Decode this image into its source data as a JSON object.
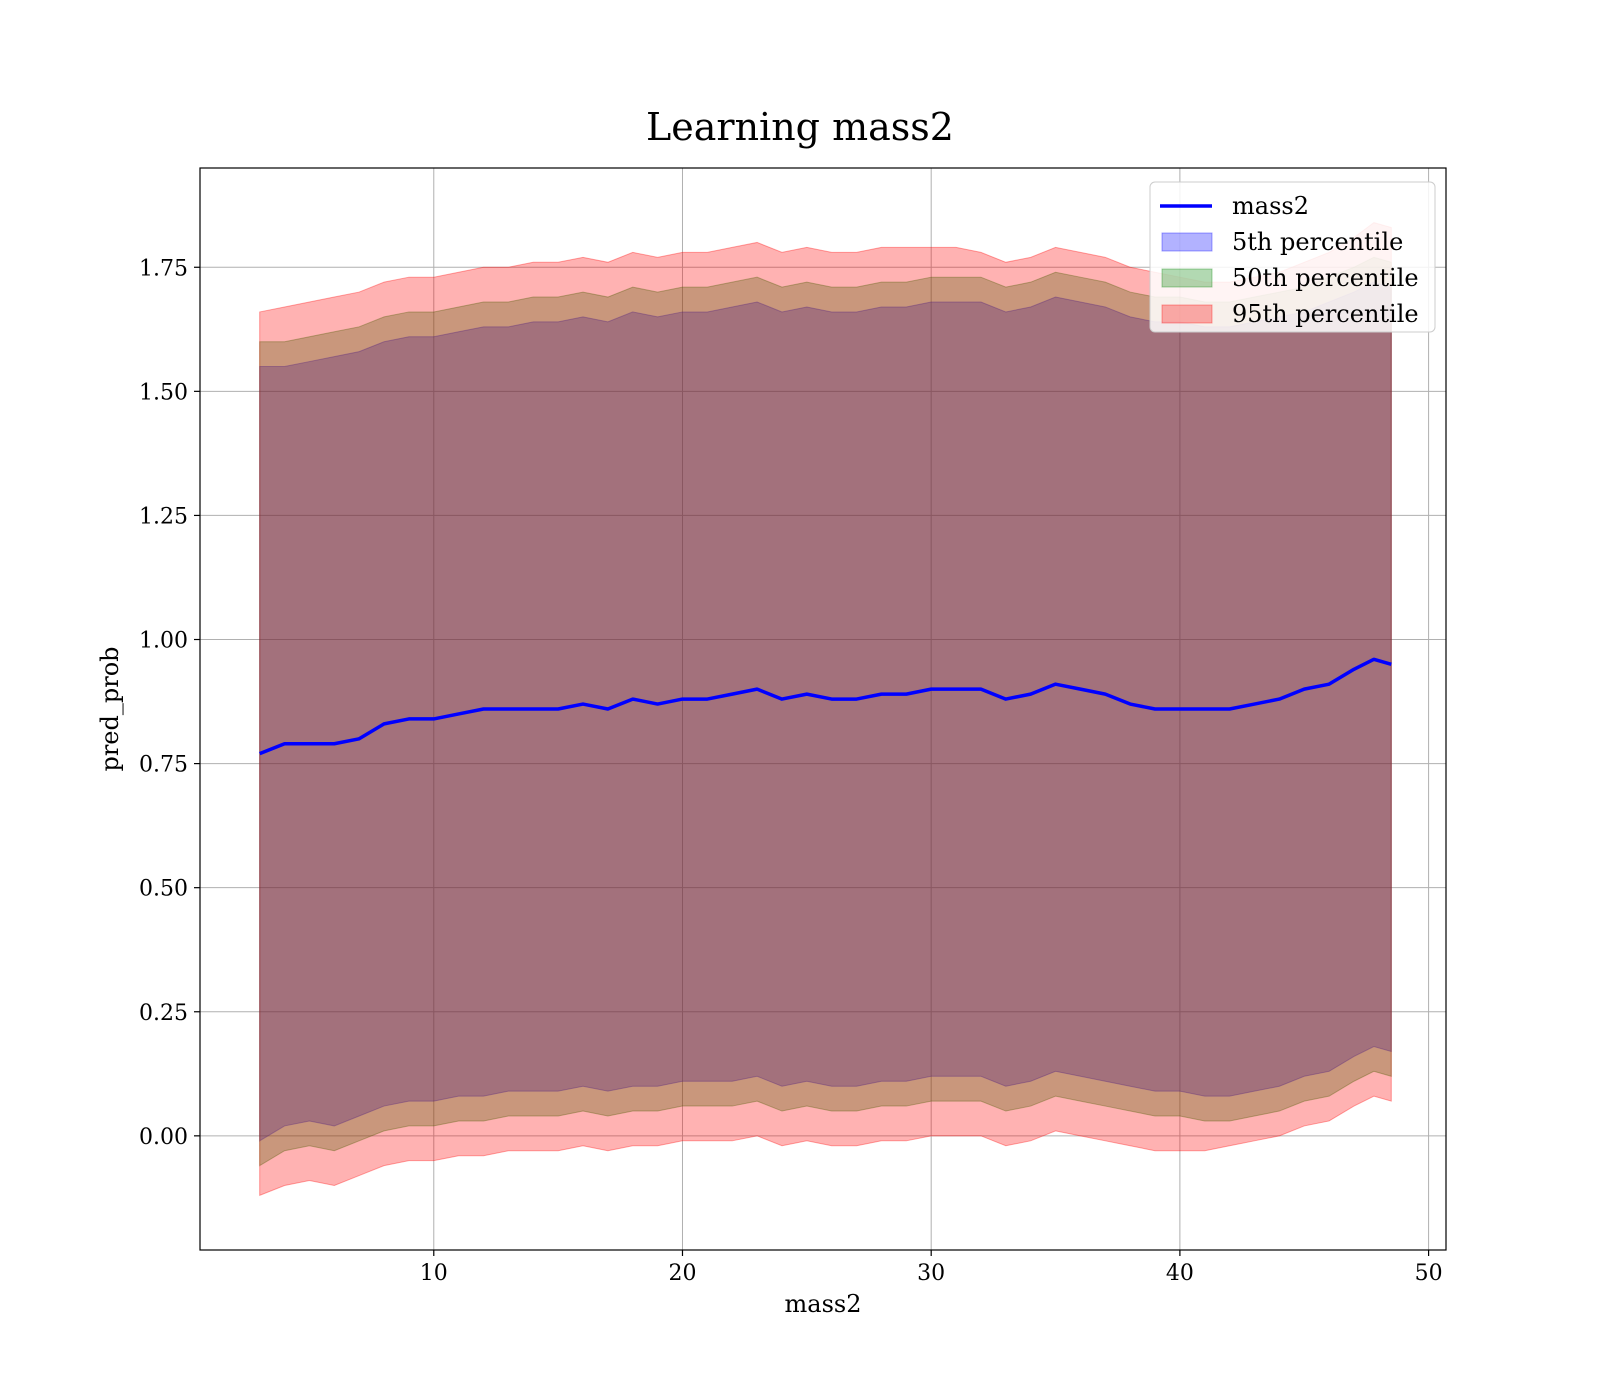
{
  "chart_data": {
    "type": "area",
    "title": "Learning mass2",
    "xlabel": "mass2",
    "ylabel": "pred_prob",
    "xlim": [
      0.6,
      50.7
    ],
    "ylim": [
      -0.23,
      1.95
    ],
    "xticks": [
      10,
      20,
      30,
      40,
      50
    ],
    "xtick_labels": [
      "10",
      "20",
      "30",
      "40",
      "50"
    ],
    "yticks": [
      0.0,
      0.25,
      0.5,
      0.75,
      1.0,
      1.25,
      1.5,
      1.75
    ],
    "ytick_labels": [
      "0.00",
      "0.25",
      "0.50",
      "0.75",
      "1.00",
      "1.25",
      "1.50",
      "1.75"
    ],
    "grid": true,
    "legend_position": "top-right",
    "series": [
      {
        "name": "mass2",
        "kind": "line",
        "color": "#0000ff",
        "x": [
          3.0,
          4.0,
          5.0,
          6.0,
          7.0,
          8.0,
          9.0,
          10.0,
          11.0,
          12.0,
          13.0,
          14.0,
          15.0,
          16.0,
          17.0,
          18.0,
          19.0,
          20.0,
          21.0,
          22.0,
          23.0,
          24.0,
          25.0,
          26.0,
          27.0,
          28.0,
          29.0,
          30.0,
          31.0,
          32.0,
          33.0,
          34.0,
          35.0,
          36.0,
          37.0,
          38.0,
          39.0,
          40.0,
          41.0,
          42.0,
          43.0,
          44.0,
          45.0,
          46.0,
          47.0,
          47.8,
          48.5
        ],
        "y": [
          0.77,
          0.79,
          0.79,
          0.79,
          0.8,
          0.83,
          0.84,
          0.84,
          0.85,
          0.86,
          0.86,
          0.86,
          0.86,
          0.87,
          0.86,
          0.88,
          0.87,
          0.88,
          0.88,
          0.89,
          0.9,
          0.88,
          0.89,
          0.88,
          0.88,
          0.89,
          0.89,
          0.9,
          0.9,
          0.9,
          0.88,
          0.89,
          0.91,
          0.9,
          0.89,
          0.87,
          0.86,
          0.86,
          0.86,
          0.86,
          0.87,
          0.88,
          0.9,
          0.91,
          0.94,
          0.96,
          0.95
        ]
      },
      {
        "name": "5th percentile",
        "kind": "band",
        "color": "#0000ff",
        "x": [
          3.0,
          4.0,
          5.0,
          6.0,
          7.0,
          8.0,
          9.0,
          10.0,
          11.0,
          12.0,
          13.0,
          14.0,
          15.0,
          16.0,
          17.0,
          18.0,
          19.0,
          20.0,
          21.0,
          22.0,
          23.0,
          24.0,
          25.0,
          26.0,
          27.0,
          28.0,
          29.0,
          30.0,
          31.0,
          32.0,
          33.0,
          34.0,
          35.0,
          36.0,
          37.0,
          38.0,
          39.0,
          40.0,
          41.0,
          42.0,
          43.0,
          44.0,
          45.0,
          46.0,
          47.0,
          47.8,
          48.5
        ],
        "upper": [
          1.55,
          1.55,
          1.56,
          1.57,
          1.58,
          1.6,
          1.61,
          1.61,
          1.62,
          1.63,
          1.63,
          1.64,
          1.64,
          1.65,
          1.64,
          1.66,
          1.65,
          1.66,
          1.66,
          1.67,
          1.68,
          1.66,
          1.67,
          1.66,
          1.66,
          1.67,
          1.67,
          1.68,
          1.68,
          1.68,
          1.66,
          1.67,
          1.69,
          1.68,
          1.67,
          1.65,
          1.64,
          1.64,
          1.63,
          1.63,
          1.64,
          1.65,
          1.66,
          1.68,
          1.7,
          1.72,
          1.71
        ],
        "lower": [
          -0.01,
          0.02,
          0.03,
          0.02,
          0.04,
          0.06,
          0.07,
          0.07,
          0.08,
          0.08,
          0.09,
          0.09,
          0.09,
          0.1,
          0.09,
          0.1,
          0.1,
          0.11,
          0.11,
          0.11,
          0.12,
          0.1,
          0.11,
          0.1,
          0.1,
          0.11,
          0.11,
          0.12,
          0.12,
          0.12,
          0.1,
          0.11,
          0.13,
          0.12,
          0.11,
          0.1,
          0.09,
          0.09,
          0.08,
          0.08,
          0.09,
          0.1,
          0.12,
          0.13,
          0.16,
          0.18,
          0.17
        ]
      },
      {
        "name": "50th percentile",
        "kind": "band",
        "color": "#008000",
        "x": [
          3.0,
          4.0,
          5.0,
          6.0,
          7.0,
          8.0,
          9.0,
          10.0,
          11.0,
          12.0,
          13.0,
          14.0,
          15.0,
          16.0,
          17.0,
          18.0,
          19.0,
          20.0,
          21.0,
          22.0,
          23.0,
          24.0,
          25.0,
          26.0,
          27.0,
          28.0,
          29.0,
          30.0,
          31.0,
          32.0,
          33.0,
          34.0,
          35.0,
          36.0,
          37.0,
          38.0,
          39.0,
          40.0,
          41.0,
          42.0,
          43.0,
          44.0,
          45.0,
          46.0,
          47.0,
          47.8,
          48.5
        ],
        "upper": [
          1.6,
          1.6,
          1.61,
          1.62,
          1.63,
          1.65,
          1.66,
          1.66,
          1.67,
          1.68,
          1.68,
          1.69,
          1.69,
          1.7,
          1.69,
          1.71,
          1.7,
          1.71,
          1.71,
          1.72,
          1.73,
          1.71,
          1.72,
          1.71,
          1.71,
          1.72,
          1.72,
          1.73,
          1.73,
          1.73,
          1.71,
          1.72,
          1.74,
          1.73,
          1.72,
          1.7,
          1.69,
          1.69,
          1.68,
          1.68,
          1.69,
          1.7,
          1.71,
          1.73,
          1.75,
          1.77,
          1.76
        ],
        "lower": [
          -0.06,
          -0.03,
          -0.02,
          -0.03,
          -0.01,
          0.01,
          0.02,
          0.02,
          0.03,
          0.03,
          0.04,
          0.04,
          0.04,
          0.05,
          0.04,
          0.05,
          0.05,
          0.06,
          0.06,
          0.06,
          0.07,
          0.05,
          0.06,
          0.05,
          0.05,
          0.06,
          0.06,
          0.07,
          0.07,
          0.07,
          0.05,
          0.06,
          0.08,
          0.07,
          0.06,
          0.05,
          0.04,
          0.04,
          0.03,
          0.03,
          0.04,
          0.05,
          0.07,
          0.08,
          0.11,
          0.13,
          0.12
        ]
      },
      {
        "name": "95th percentile",
        "kind": "band",
        "color": "#ff0000",
        "x": [
          3.0,
          4.0,
          5.0,
          6.0,
          7.0,
          8.0,
          9.0,
          10.0,
          11.0,
          12.0,
          13.0,
          14.0,
          15.0,
          16.0,
          17.0,
          18.0,
          19.0,
          20.0,
          21.0,
          22.0,
          23.0,
          24.0,
          25.0,
          26.0,
          27.0,
          28.0,
          29.0,
          30.0,
          31.0,
          32.0,
          33.0,
          34.0,
          35.0,
          36.0,
          37.0,
          38.0,
          39.0,
          40.0,
          41.0,
          42.0,
          43.0,
          44.0,
          45.0,
          46.0,
          47.0,
          47.8,
          48.5
        ],
        "upper": [
          1.66,
          1.67,
          1.68,
          1.69,
          1.7,
          1.72,
          1.73,
          1.73,
          1.74,
          1.75,
          1.75,
          1.76,
          1.76,
          1.77,
          1.76,
          1.78,
          1.77,
          1.78,
          1.78,
          1.79,
          1.8,
          1.78,
          1.79,
          1.78,
          1.78,
          1.79,
          1.79,
          1.79,
          1.79,
          1.78,
          1.76,
          1.77,
          1.79,
          1.78,
          1.77,
          1.75,
          1.74,
          1.73,
          1.72,
          1.72,
          1.73,
          1.74,
          1.76,
          1.78,
          1.81,
          1.84,
          1.83
        ],
        "lower": [
          -0.12,
          -0.1,
          -0.09,
          -0.1,
          -0.08,
          -0.06,
          -0.05,
          -0.05,
          -0.04,
          -0.04,
          -0.03,
          -0.03,
          -0.03,
          -0.02,
          -0.03,
          -0.02,
          -0.02,
          -0.01,
          -0.01,
          -0.01,
          0.0,
          -0.02,
          -0.01,
          -0.02,
          -0.02,
          -0.01,
          -0.01,
          0.0,
          0.0,
          0.0,
          -0.02,
          -0.01,
          0.01,
          0.0,
          -0.01,
          -0.02,
          -0.03,
          -0.03,
          -0.03,
          -0.02,
          -0.01,
          0.0,
          0.02,
          0.03,
          0.06,
          0.08,
          0.07
        ]
      }
    ]
  }
}
